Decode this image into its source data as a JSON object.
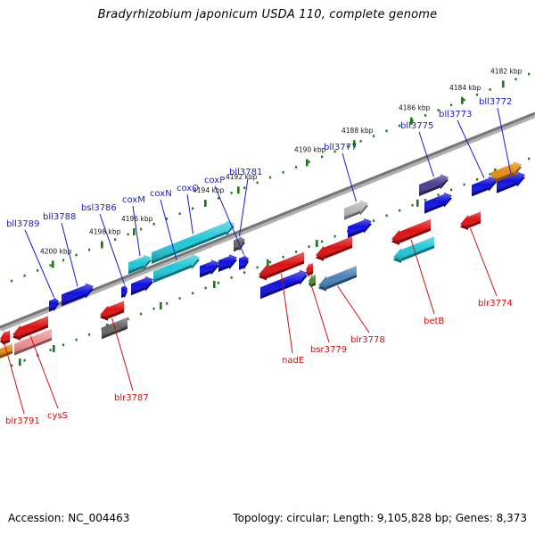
{
  "title": "Bradyrhizobium japonicum USDA 110, complete genome",
  "footer": {
    "accession_label": "Accession: NC_004463",
    "summary": "Topology: circular; Length: 9,105,828 bp; Genes: 8,373"
  },
  "colors": {
    "forward_label": "#1a1acc",
    "reverse_label": "#cc1111",
    "backbone": "#777777",
    "tick": "#1a7a1a"
  },
  "kbp_ticks": [
    "4182 kbp",
    "4184 kbp",
    "4186 kbp",
    "4188 kbp",
    "4190 kbp",
    "4192 kbp",
    "4194 kbp",
    "4196 kbp",
    "4198 kbp",
    "4200 kbp"
  ],
  "forward_genes": [
    {
      "label": "bll3772",
      "color": "#1010e0"
    },
    {
      "label": "",
      "color": "#e88a10"
    },
    {
      "label": "bll3773",
      "color": "#1010e0"
    },
    {
      "label": "bll3775",
      "color": "#4a3f8c"
    },
    {
      "label": "",
      "color": "#1010e0"
    },
    {
      "label": "bll3777",
      "color": "#b8b8b8"
    },
    {
      "label": "",
      "color": "#1010e0"
    },
    {
      "label": "bll3781",
      "color": "#666666"
    },
    {
      "label": "coxP",
      "color": "#1010e0"
    },
    {
      "label": "coxO",
      "color": "#20c8d8"
    },
    {
      "label": "",
      "color": "#1010e0"
    },
    {
      "label": "coxN",
      "color": "#20c8d8"
    },
    {
      "label": "",
      "color": "#1010e0"
    },
    {
      "label": "coxM",
      "color": "#20c8d8"
    },
    {
      "label": "",
      "color": "#1010e0"
    },
    {
      "label": "bsl3786",
      "color": "#1010e0"
    },
    {
      "label": "bll3788",
      "color": "#1010e0"
    },
    {
      "label": "bll3789",
      "color": "#1010e0"
    }
  ],
  "reverse_genes": [
    {
      "label": "blr3774",
      "color": "#e01010"
    },
    {
      "label": "betB",
      "color": "#e01010"
    },
    {
      "label": "",
      "color": "#20c8d8"
    },
    {
      "label": "",
      "color": "#e01010"
    },
    {
      "label": "blr3778",
      "color": "#4a80b8"
    },
    {
      "label": "",
      "color": "#e01010"
    },
    {
      "label": "bsr3779",
      "color": "#4a8a2a"
    },
    {
      "label": "nadE",
      "color": "#e01010"
    },
    {
      "label": "",
      "color": "#1010e0"
    },
    {
      "label": "blr3787",
      "color": "#e01010"
    },
    {
      "label": "",
      "color": "#666666"
    },
    {
      "label": "cysS",
      "color": "#e01010"
    },
    {
      "label": "",
      "color": "#f09090"
    },
    {
      "label": "blr3791",
      "color": "#e01010"
    },
    {
      "label": "",
      "color": "#e88a10"
    }
  ]
}
